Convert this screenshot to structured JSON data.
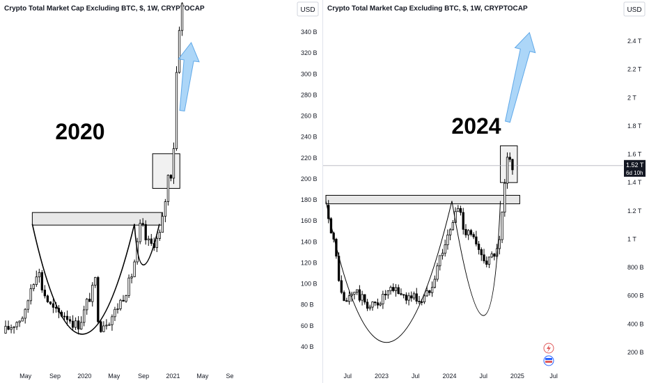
{
  "colors": {
    "candle_up": "#ffffff",
    "candle_down": "#000000",
    "wick": "#000000",
    "arrow": "#90c8f5",
    "box_fill": "#e8e8e8",
    "price_label_bg": "#131722"
  },
  "chart_data": [
    {
      "type": "candlestick",
      "title": "Crypto Total Market Cap Excluding BTC, $, 1W, CRYPTOCAP",
      "currency_label": "USD",
      "annotation_text": "2020",
      "x_tick_labels": [
        "May",
        "Sep",
        "2020",
        "May",
        "Sep",
        "2021",
        "May",
        "Se"
      ],
      "y_tick_labels": [
        "40 B",
        "60 B",
        "80 B",
        "100 B",
        "120 B",
        "140 B",
        "160 B",
        "180 B",
        "200 B",
        "220 B",
        "240 B",
        "260 B",
        "280 B",
        "300 B",
        "320 B",
        "340 B"
      ],
      "ylim": [
        30,
        360
      ],
      "x_domain": [
        0,
        1
      ],
      "x_ticks": [
        0.1,
        0.23,
        0.36,
        0.49,
        0.62,
        0.75,
        0.88,
        1.0
      ],
      "y_ticks": [
        40,
        60,
        80,
        100,
        120,
        140,
        160,
        180,
        200,
        220,
        240,
        260,
        280,
        300,
        320,
        340
      ],
      "close_path": [
        [
          0.0,
          53
        ],
        [
          0.02,
          57
        ],
        [
          0.04,
          60
        ],
        [
          0.06,
          64
        ],
        [
          0.08,
          68
        ],
        [
          0.1,
          72
        ],
        [
          0.12,
          95
        ],
        [
          0.14,
          106
        ],
        [
          0.155,
          116
        ],
        [
          0.17,
          98
        ],
        [
          0.19,
          87
        ],
        [
          0.21,
          79
        ],
        [
          0.23,
          73
        ],
        [
          0.25,
          72
        ],
        [
          0.27,
          71
        ],
        [
          0.29,
          68
        ],
        [
          0.31,
          63
        ],
        [
          0.33,
          60
        ],
        [
          0.35,
          68
        ],
        [
          0.37,
          82
        ],
        [
          0.39,
          90
        ],
        [
          0.41,
          105
        ],
        [
          0.42,
          68
        ],
        [
          0.43,
          59
        ],
        [
          0.45,
          64
        ],
        [
          0.47,
          66
        ],
        [
          0.49,
          72
        ],
        [
          0.51,
          80
        ],
        [
          0.53,
          88
        ],
        [
          0.55,
          97
        ],
        [
          0.57,
          110
        ],
        [
          0.59,
          132
        ],
        [
          0.6,
          150
        ],
        [
          0.61,
          158
        ],
        [
          0.63,
          142
        ],
        [
          0.65,
          137
        ],
        [
          0.67,
          140
        ],
        [
          0.69,
          145
        ],
        [
          0.7,
          158
        ],
        [
          0.71,
          166
        ],
        [
          0.72,
          190
        ],
        [
          0.73,
          205
        ],
        [
          0.74,
          204
        ],
        [
          0.75,
          215
        ],
        [
          0.76,
          270
        ],
        [
          0.77,
          330
        ],
        [
          0.78,
          350
        ],
        [
          0.79,
          365
        ]
      ],
      "cup_curve": [
        [
          0.13,
          157
        ],
        [
          0.35,
          52
        ],
        [
          0.58,
          157
        ]
      ],
      "handle_curve": [
        [
          0.58,
          157
        ],
        [
          0.62,
          118
        ],
        [
          0.69,
          157
        ]
      ],
      "resistance_zone": {
        "x": [
          0.13,
          0.7
        ],
        "y": [
          156,
          168
        ]
      },
      "breakout_box": {
        "x": [
          0.66,
          0.78
        ],
        "y": [
          191,
          224
        ]
      },
      "arrow": {
        "x": [
          0.79,
          0.83
        ],
        "y": [
          265,
          330
        ]
      }
    },
    {
      "type": "candlestick",
      "title": "Crypto Total Market Cap Excluding BTC, $, 1W, CRYPTOCAP",
      "currency_label": "USD",
      "annotation_text": "2024",
      "x_tick_labels": [
        "Jul",
        "2023",
        "Jul",
        "2024",
        "Jul",
        "2025",
        "Jul"
      ],
      "y_tick_labels": [
        "200 B",
        "400 B",
        "600 B",
        "800 B",
        "1 T",
        "1.2 T",
        "1.4 T",
        "1.6 T",
        "1.8 T",
        "2 T",
        "2.2 T",
        "2.4 T"
      ],
      "ylim": [
        140,
        2680
      ],
      "x_domain": [
        0,
        1
      ],
      "x_ticks": [
        0.09,
        0.23,
        0.37,
        0.51,
        0.65,
        0.79,
        0.94
      ],
      "y_ticks": [
        200,
        400,
        600,
        800,
        1000,
        1200,
        1400,
        1600,
        1800,
        2000,
        2200,
        2400
      ],
      "current_price_label": "1.52 T",
      "time_remaining_label": "6d 10h",
      "current_price": 1520,
      "close_path": [
        [
          0.0,
          1240
        ],
        [
          0.01,
          1180
        ],
        [
          0.03,
          1000
        ],
        [
          0.04,
          900
        ],
        [
          0.05,
          780
        ],
        [
          0.06,
          640
        ],
        [
          0.07,
          560
        ],
        [
          0.08,
          540
        ],
        [
          0.1,
          600
        ],
        [
          0.12,
          640
        ],
        [
          0.14,
          590
        ],
        [
          0.16,
          560
        ],
        [
          0.18,
          520
        ],
        [
          0.2,
          540
        ],
        [
          0.22,
          560
        ],
        [
          0.24,
          600
        ],
        [
          0.26,
          620
        ],
        [
          0.28,
          640
        ],
        [
          0.3,
          630
        ],
        [
          0.32,
          600
        ],
        [
          0.34,
          590
        ],
        [
          0.36,
          600
        ],
        [
          0.38,
          570
        ],
        [
          0.4,
          570
        ],
        [
          0.42,
          620
        ],
        [
          0.44,
          700
        ],
        [
          0.46,
          820
        ],
        [
          0.48,
          920
        ],
        [
          0.5,
          1000
        ],
        [
          0.52,
          1090
        ],
        [
          0.53,
          1180
        ],
        [
          0.55,
          1230
        ],
        [
          0.56,
          1150
        ],
        [
          0.57,
          1050
        ],
        [
          0.59,
          1080
        ],
        [
          0.61,
          1000
        ],
        [
          0.63,
          900
        ],
        [
          0.65,
          880
        ],
        [
          0.67,
          840
        ],
        [
          0.69,
          890
        ],
        [
          0.71,
          910
        ],
        [
          0.72,
          1000
        ],
        [
          0.73,
          1240
        ],
        [
          0.74,
          1400
        ],
        [
          0.75,
          1590
        ],
        [
          0.76,
          1550
        ],
        [
          0.77,
          1520
        ]
      ],
      "cup_curve": [
        [
          0.0,
          1270
        ],
        [
          0.25,
          270
        ],
        [
          0.52,
          1270
        ]
      ],
      "handle_curve": [
        [
          0.52,
          1270
        ],
        [
          0.65,
          460
        ],
        [
          0.72,
          1270
        ]
      ],
      "resistance_zone": {
        "x": [
          0.0,
          0.8
        ],
        "y": [
          1250,
          1310
        ]
      },
      "breakout_box": {
        "x": [
          0.72,
          0.79
        ],
        "y": [
          1400,
          1660
        ]
      },
      "arrow": {
        "x": [
          0.75,
          0.84
        ],
        "y": [
          1830,
          2460
        ]
      }
    }
  ]
}
